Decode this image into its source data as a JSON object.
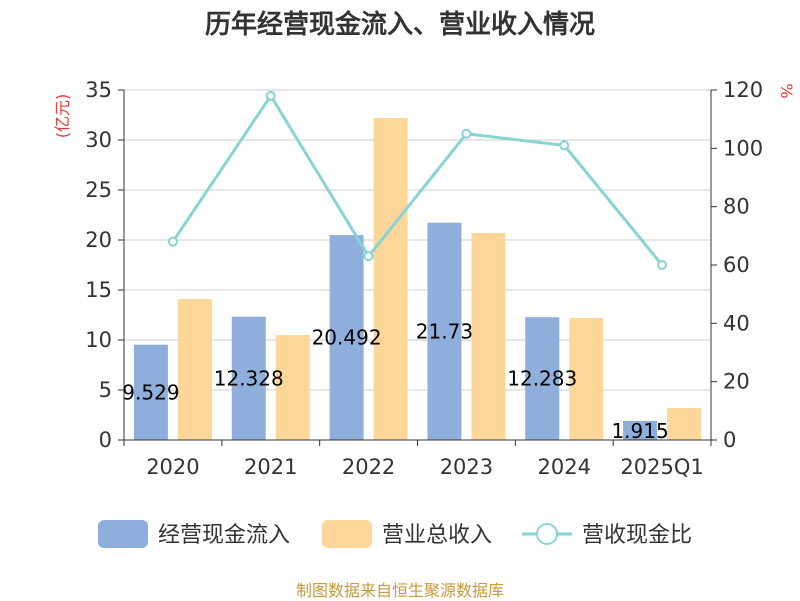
{
  "chart_data": {
    "type": "bar",
    "title": "历年经营现金流入、营业收入情况",
    "categories": [
      "2020",
      "2021",
      "2022",
      "2023",
      "2024",
      "2025Q1"
    ],
    "series": [
      {
        "name": "经营现金流入",
        "kind": "bar",
        "axis": "left",
        "color": "#8eaedb",
        "values": [
          9.529,
          12.328,
          20.492,
          21.73,
          12.283,
          1.915
        ]
      },
      {
        "name": "营业总收入",
        "kind": "bar",
        "axis": "left",
        "color": "#fdd79a",
        "values": [
          14.1,
          10.5,
          32.2,
          20.7,
          12.2,
          3.2
        ]
      },
      {
        "name": "营收现金比",
        "kind": "line",
        "axis": "right",
        "color": "#88d3d6",
        "values": [
          68,
          118,
          63,
          105,
          101,
          60
        ]
      }
    ],
    "data_labels": [
      "9.529",
      "12.328",
      "20.492",
      "21.73",
      "12.283",
      "1.915"
    ],
    "y_left": {
      "unit": "(亿元)",
      "ylim": [
        0,
        35
      ],
      "ticks": [
        "0",
        "5",
        "10",
        "15",
        "20",
        "25",
        "30",
        "35"
      ]
    },
    "y_right": {
      "unit": "%",
      "ylim": [
        0,
        120
      ],
      "ticks": [
        "0",
        "20",
        "40",
        "60",
        "80",
        "100",
        "120"
      ]
    },
    "grid": true,
    "legend_position": "bottom"
  },
  "source_text": "制图数据来自恒生聚源数据库"
}
